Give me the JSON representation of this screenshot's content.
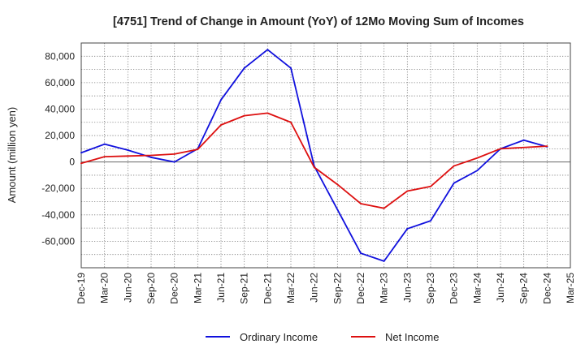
{
  "chart_data": {
    "type": "line",
    "title": "[4751]  Trend of Change in Amount (YoY) of 12Mo Moving Sum of Incomes",
    "xlabel": "",
    "ylabel": "Amount (million yen)",
    "ylim": [
      -80000,
      90000
    ],
    "yticks": [
      80000,
      60000,
      40000,
      20000,
      0,
      -20000,
      -40000,
      -60000
    ],
    "ytick_labels": [
      "80,000",
      "60,000",
      "40,000",
      "20,000",
      "0",
      "-20,000",
      "-40,000",
      "-60,000"
    ],
    "categories": [
      "Dec-19",
      "Mar-20",
      "Jun-20",
      "Sep-20",
      "Dec-20",
      "Mar-21",
      "Jun-21",
      "Sep-21",
      "Dec-21",
      "Mar-22",
      "Jun-22",
      "Sep-22",
      "Dec-22",
      "Mar-23",
      "Jun-23",
      "Sep-23",
      "Dec-23",
      "Mar-24",
      "Jun-24",
      "Sep-24",
      "Dec-24",
      "Mar-25"
    ],
    "grid": true,
    "legend_position": "bottom",
    "series": [
      {
        "name": "Ordinary Income",
        "color": "#1010dd",
        "values": [
          7000,
          13500,
          9000,
          3500,
          0,
          10000,
          47000,
          71000,
          85000,
          71000,
          -3000,
          -36000,
          -69000,
          -75000,
          -50500,
          -44500,
          -16000,
          -6500,
          10000,
          16500,
          11500,
          null
        ]
      },
      {
        "name": "Net Income",
        "color": "#dd1010",
        "values": [
          -1000,
          4000,
          4500,
          5000,
          6000,
          9500,
          28000,
          35000,
          37000,
          30000,
          -4000,
          -17000,
          -31500,
          -35000,
          -22000,
          -18500,
          -3000,
          3000,
          10000,
          11000,
          12000,
          null
        ]
      }
    ]
  }
}
